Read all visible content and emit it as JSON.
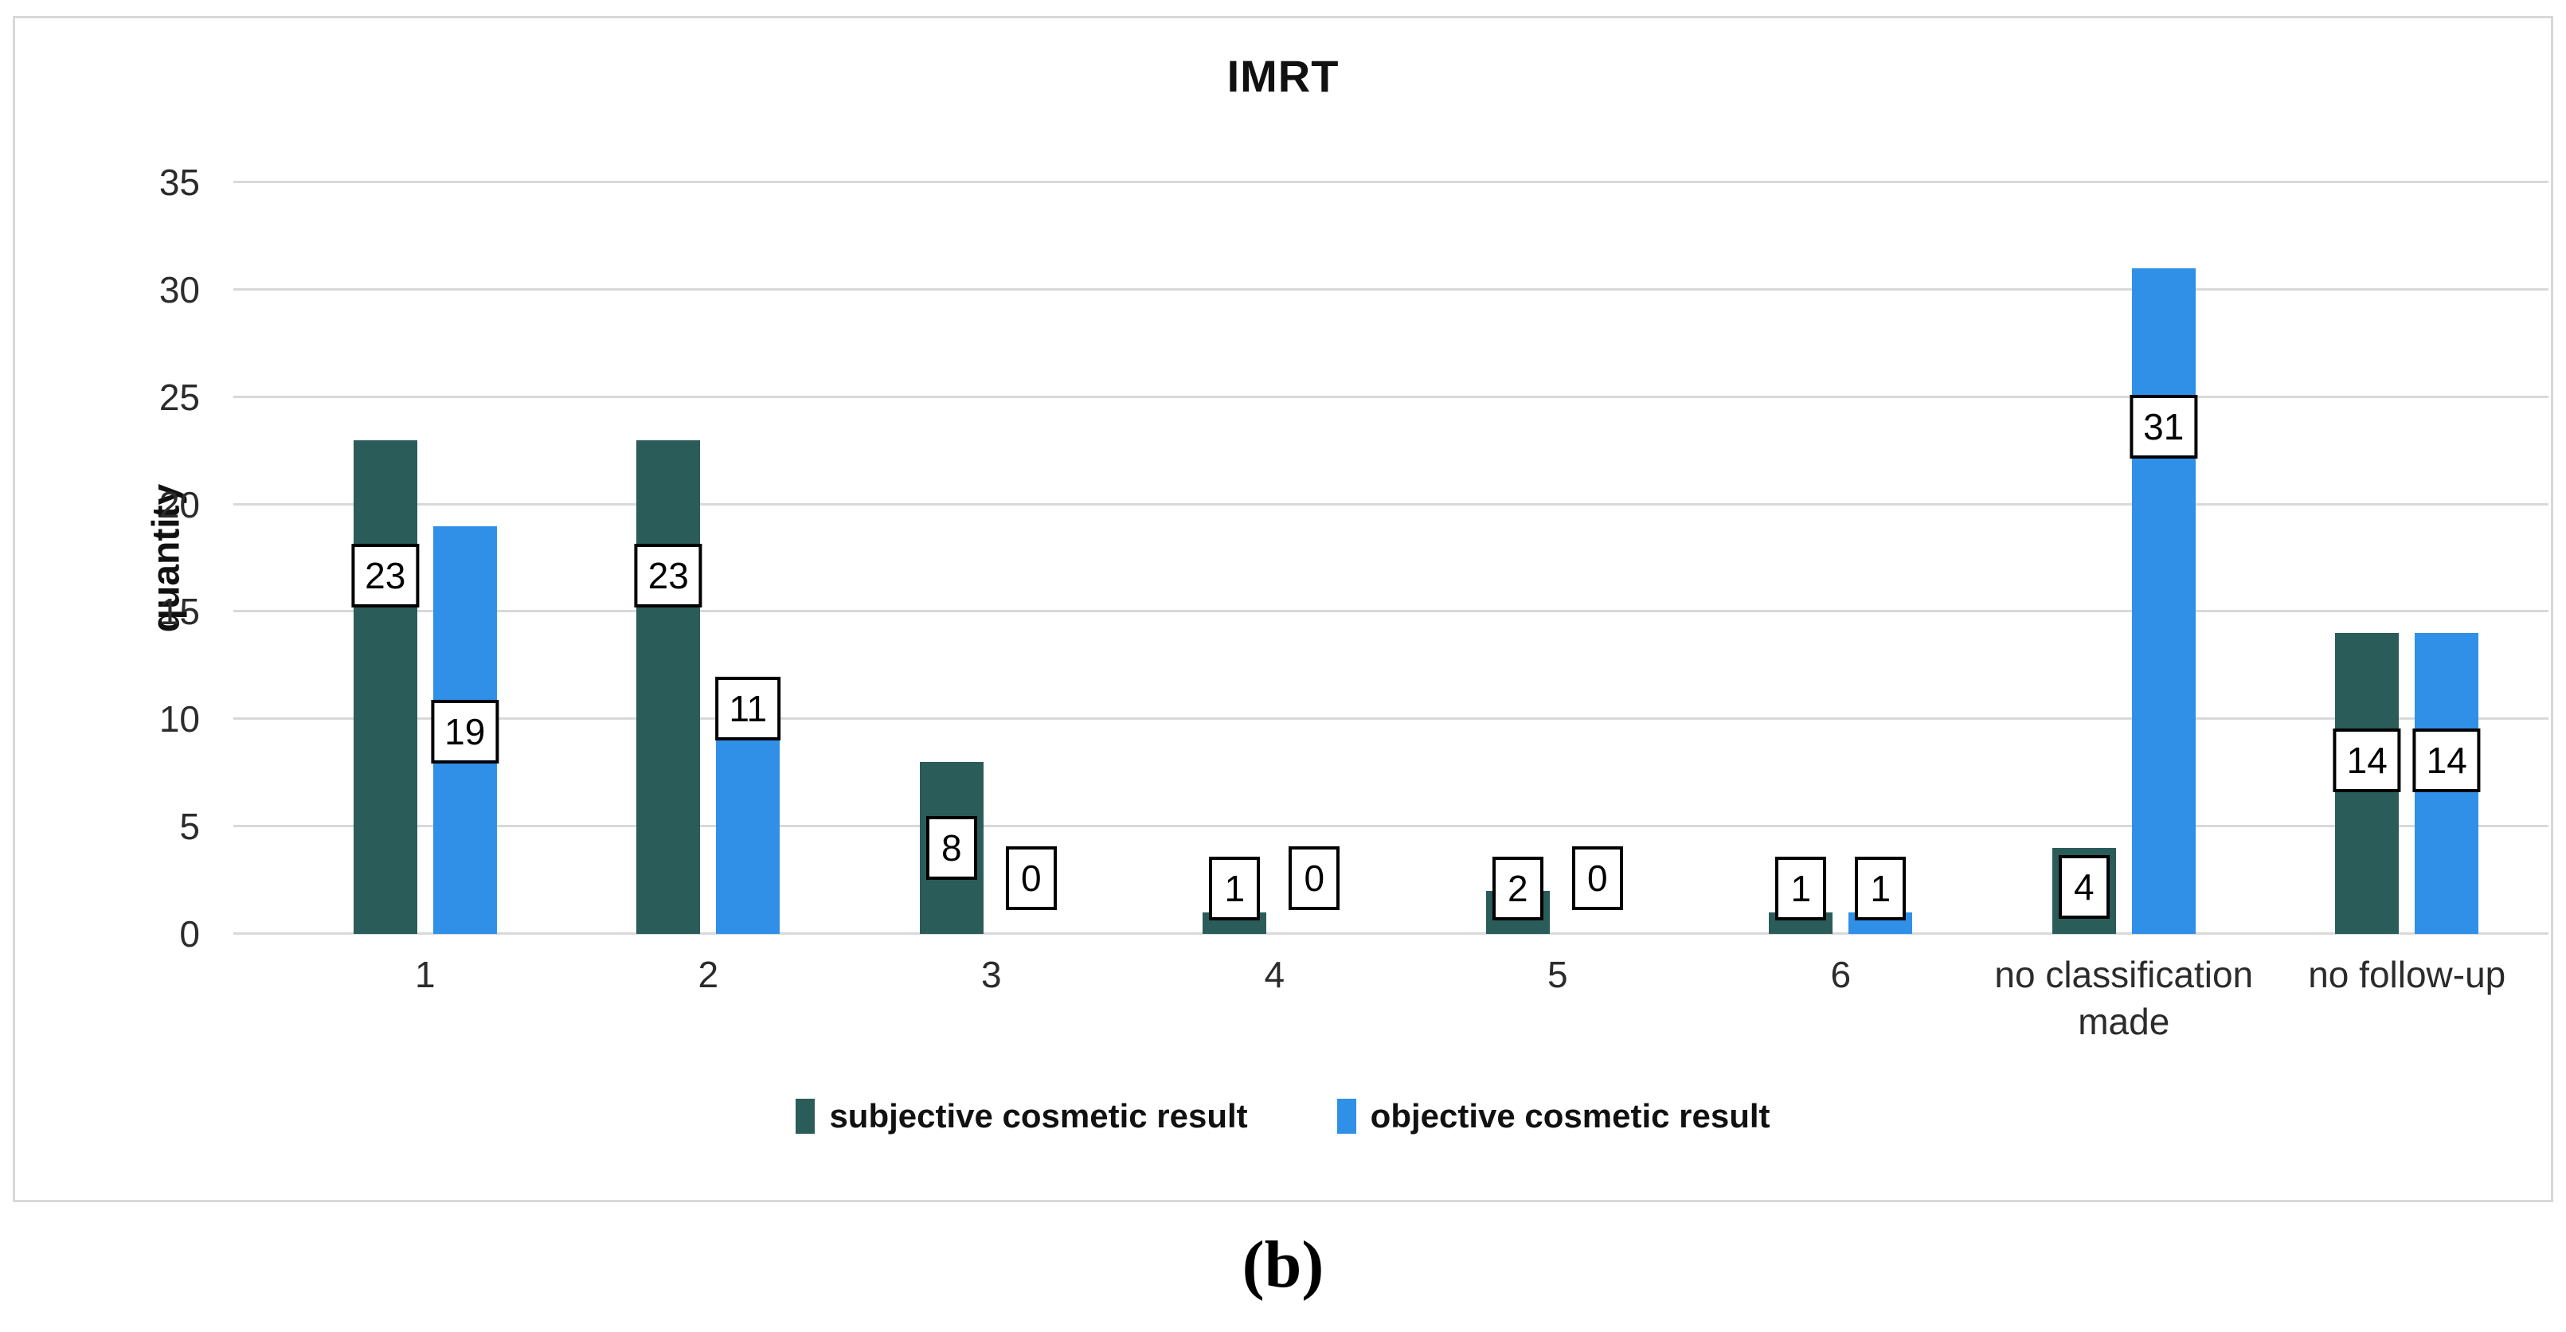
{
  "figure": {
    "caption": "(b)"
  },
  "chart_data": {
    "type": "bar",
    "title": "IMRT",
    "xlabel": "",
    "ylabel": "quantity",
    "ylim": [
      0,
      35
    ],
    "yticks": [
      0,
      5,
      10,
      15,
      20,
      25,
      30,
      35
    ],
    "grid": true,
    "legend_position": "bottom",
    "data_label_style": "boxed",
    "categories": [
      "1",
      "2",
      "3",
      "4",
      "5",
      "6",
      "no classification made",
      "no follow-up"
    ],
    "series": [
      {
        "name": "subjective cosmetic result",
        "color": "#2A5C5A",
        "values": [
          23,
          23,
          8,
          1,
          2,
          1,
          4,
          14
        ],
        "label_center_y": [
          16.7,
          16.7,
          4.0,
          2.1,
          2.1,
          2.1,
          2.2,
          8.1
        ]
      },
      {
        "name": "objective cosmetic result",
        "color": "#3090E8",
        "values": [
          19,
          11,
          0,
          0,
          0,
          1,
          31,
          14
        ],
        "label_center_y": [
          9.4,
          10.5,
          2.6,
          2.6,
          2.6,
          2.1,
          23.6,
          8.1
        ]
      }
    ]
  },
  "style_colors": {
    "background": "#FFFFFF",
    "panel_border": "#D8D8D8",
    "gridline": "#D9D9D9",
    "axis_text": "#2B2B2B",
    "label_box_border": "#000000",
    "label_box_bg": "#FFFFFF"
  }
}
